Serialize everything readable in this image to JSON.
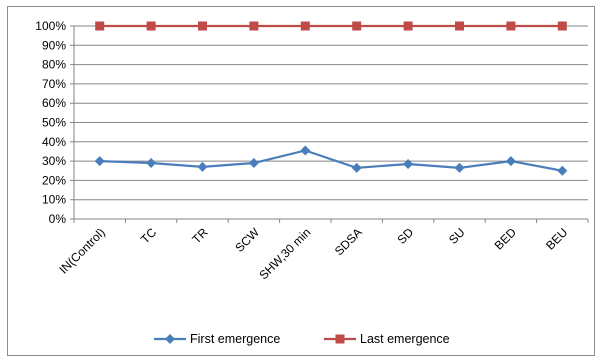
{
  "chart_data": {
    "type": "line",
    "title": "",
    "xlabel": "",
    "ylabel": "",
    "categories": [
      "IN(Control)",
      "TC",
      "TR",
      "SCW",
      "SHW,30 min",
      "SDSA",
      "SD",
      "SU",
      "BED",
      "BEU"
    ],
    "series": [
      {
        "name": "First emergence",
        "values": [
          0.3,
          0.29,
          0.27,
          0.29,
          0.355,
          0.265,
          0.285,
          0.265,
          0.3,
          0.25
        ],
        "color": "#4a7ebb",
        "marker": "diamond"
      },
      {
        "name": "Last emergence",
        "values": [
          1.0,
          1.0,
          1.0,
          1.0,
          1.0,
          1.0,
          1.0,
          1.0,
          1.0,
          1.0
        ],
        "color": "#be4b48",
        "marker": "square"
      }
    ],
    "ylim": [
      0,
      1
    ],
    "yticks": [
      "0%",
      "10%",
      "20%",
      "30%",
      "40%",
      "50%",
      "60%",
      "70%",
      "80%",
      "90%",
      "100%"
    ],
    "grid": true,
    "legend": "bottom"
  }
}
